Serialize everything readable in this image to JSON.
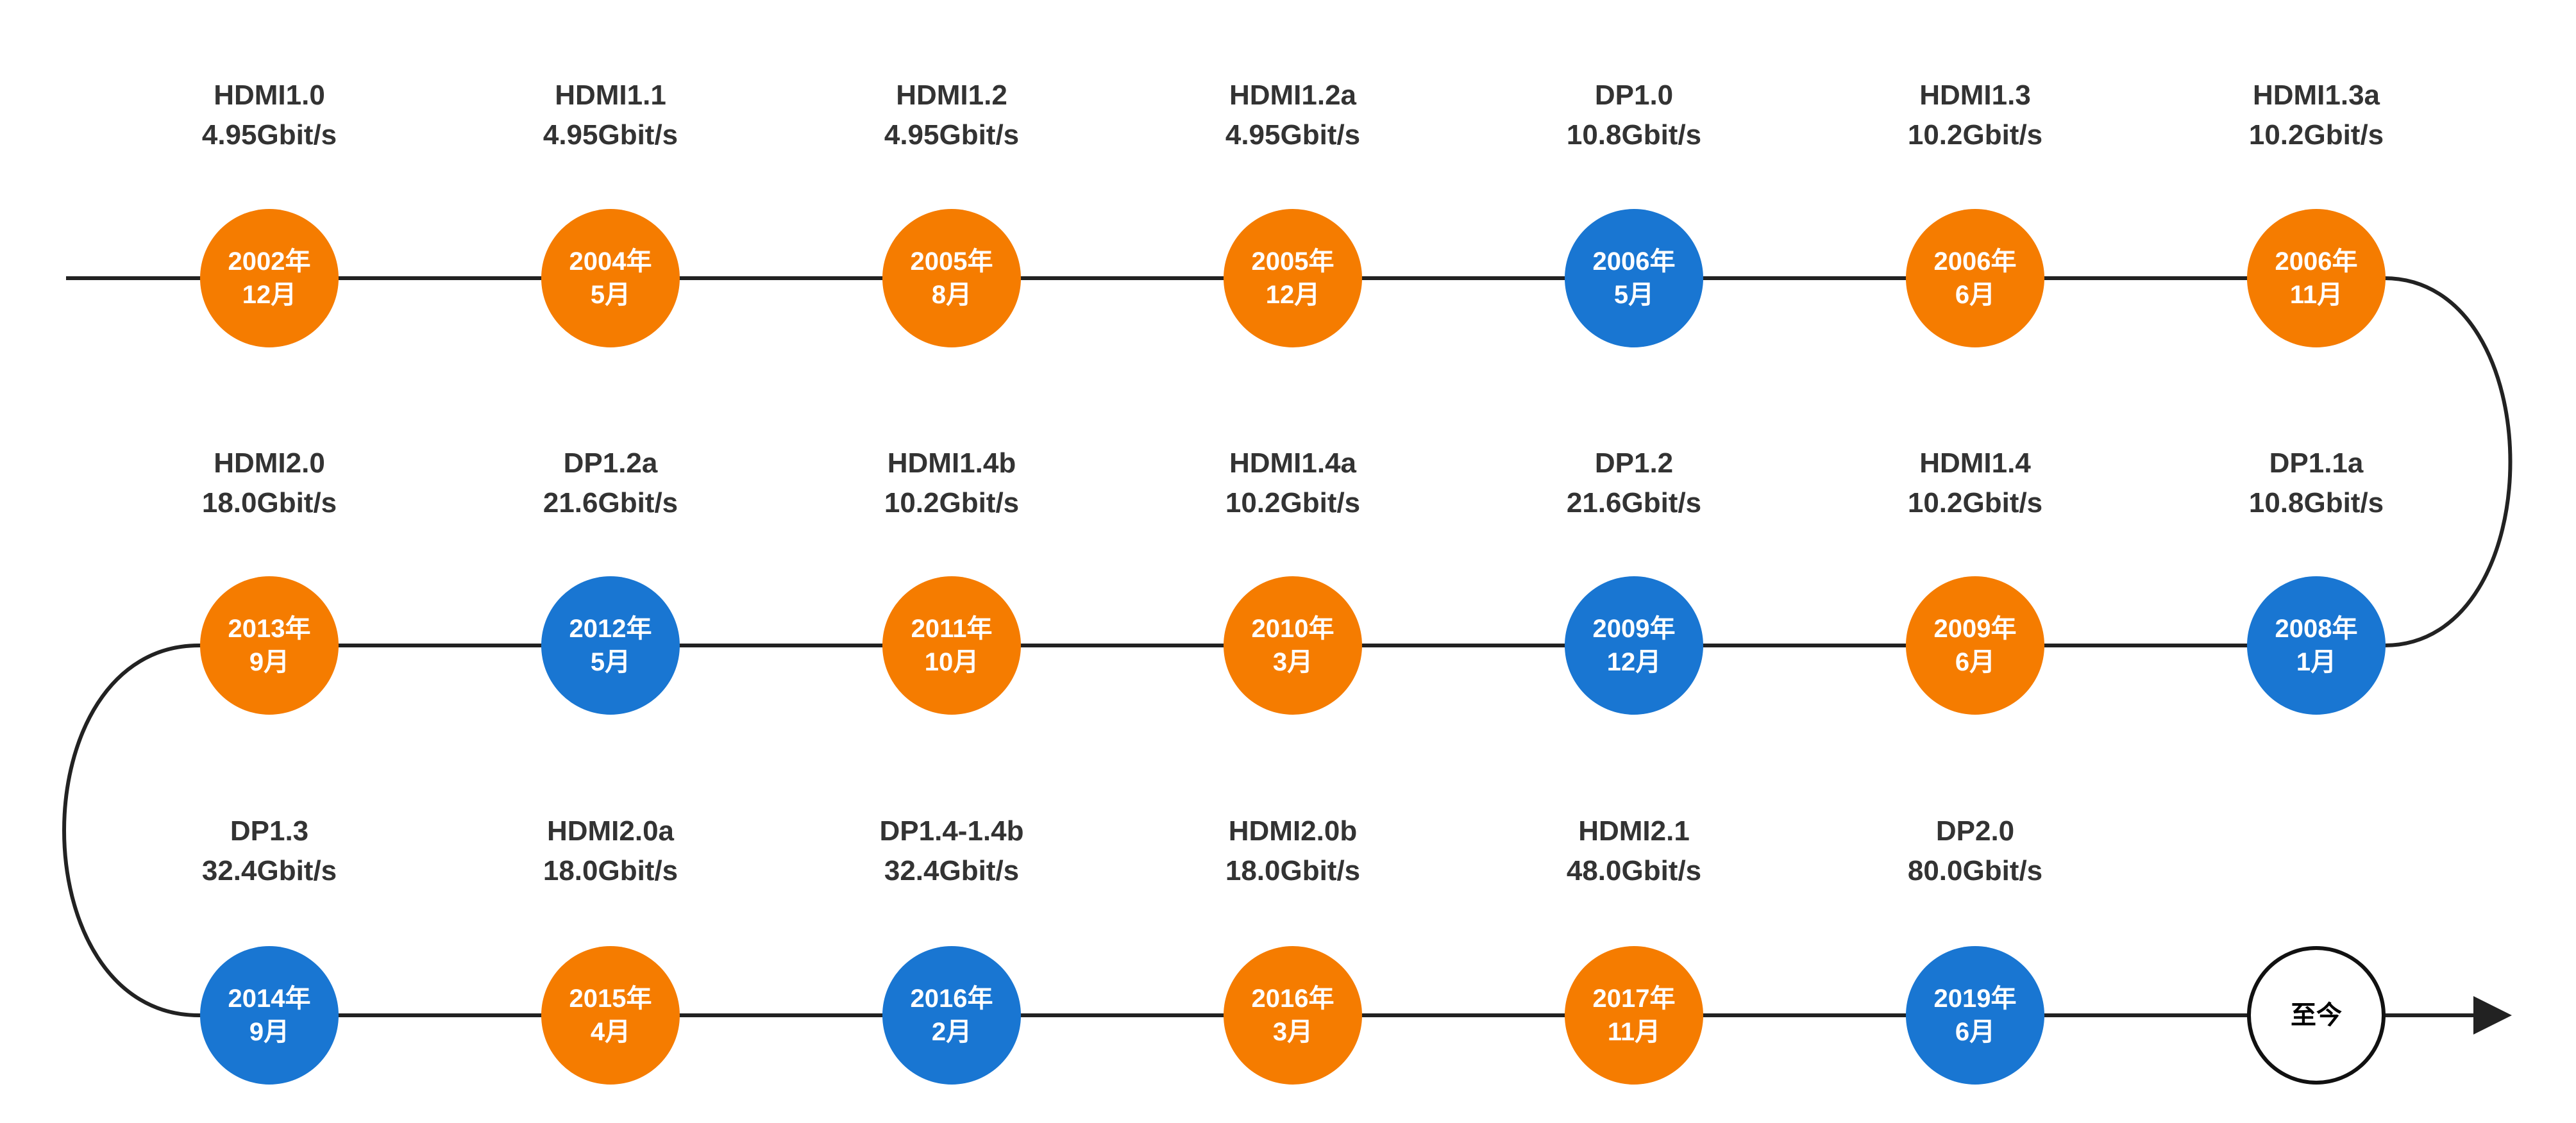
{
  "colors": {
    "hdmi": "#F57C00",
    "dp": "#1976D2",
    "line": "#222222",
    "label_text": "#333333"
  },
  "rows": [
    [
      {
        "name": "HDMI1.0",
        "speed": "4.95Gbit/s",
        "date_year": "2002年",
        "date_month": "12月",
        "type": "hdmi"
      },
      {
        "name": "HDMI1.1",
        "speed": "4.95Gbit/s",
        "date_year": "2004年",
        "date_month": "5月",
        "type": "hdmi"
      },
      {
        "name": "HDMI1.2",
        "speed": "4.95Gbit/s",
        "date_year": "2005年",
        "date_month": "8月",
        "type": "hdmi"
      },
      {
        "name": "HDMI1.2a",
        "speed": "4.95Gbit/s",
        "date_year": "2005年",
        "date_month": "12月",
        "type": "hdmi"
      },
      {
        "name": "DP1.0",
        "speed": "10.8Gbit/s",
        "date_year": "2006年",
        "date_month": "5月",
        "type": "dp"
      },
      {
        "name": "HDMI1.3",
        "speed": "10.2Gbit/s",
        "date_year": "2006年",
        "date_month": "6月",
        "type": "hdmi"
      },
      {
        "name": "HDMI1.3a",
        "speed": "10.2Gbit/s",
        "date_year": "2006年",
        "date_month": "11月",
        "type": "hdmi"
      }
    ],
    [
      {
        "name": "HDMI2.0",
        "speed": "18.0Gbit/s",
        "date_year": "2013年",
        "date_month": "9月",
        "type": "hdmi"
      },
      {
        "name": "DP1.2a",
        "speed": "21.6Gbit/s",
        "date_year": "2012年",
        "date_month": "5月",
        "type": "dp"
      },
      {
        "name": "HDMI1.4b",
        "speed": "10.2Gbit/s",
        "date_year": "2011年",
        "date_month": "10月",
        "type": "hdmi"
      },
      {
        "name": "HDMI1.4a",
        "speed": "10.2Gbit/s",
        "date_year": "2010年",
        "date_month": "3月",
        "type": "hdmi"
      },
      {
        "name": "DP1.2",
        "speed": "21.6Gbit/s",
        "date_year": "2009年",
        "date_month": "12月",
        "type": "dp"
      },
      {
        "name": "HDMI1.4",
        "speed": "10.2Gbit/s",
        "date_year": "2009年",
        "date_month": "6月",
        "type": "hdmi"
      },
      {
        "name": "DP1.1a",
        "speed": "10.8Gbit/s",
        "date_year": "2008年",
        "date_month": "1月",
        "type": "dp"
      }
    ],
    [
      {
        "name": "DP1.3",
        "speed": "32.4Gbit/s",
        "date_year": "2014年",
        "date_month": "9月",
        "type": "dp"
      },
      {
        "name": "HDMI2.0a",
        "speed": "18.0Gbit/s",
        "date_year": "2015年",
        "date_month": "4月",
        "type": "hdmi"
      },
      {
        "name": "DP1.4-1.4b",
        "speed": "32.4Gbit/s",
        "date_year": "2016年",
        "date_month": "2月",
        "type": "dp"
      },
      {
        "name": "HDMI2.0b",
        "speed": "18.0Gbit/s",
        "date_year": "2016年",
        "date_month": "3月",
        "type": "hdmi"
      },
      {
        "name": "HDMI2.1",
        "speed": "48.0Gbit/s",
        "date_year": "2017年",
        "date_month": "11月",
        "type": "hdmi"
      },
      {
        "name": "DP2.0",
        "speed": "80.0Gbit/s",
        "date_year": "2019年",
        "date_month": "6月",
        "type": "dp"
      }
    ]
  ],
  "end_label": "至今"
}
